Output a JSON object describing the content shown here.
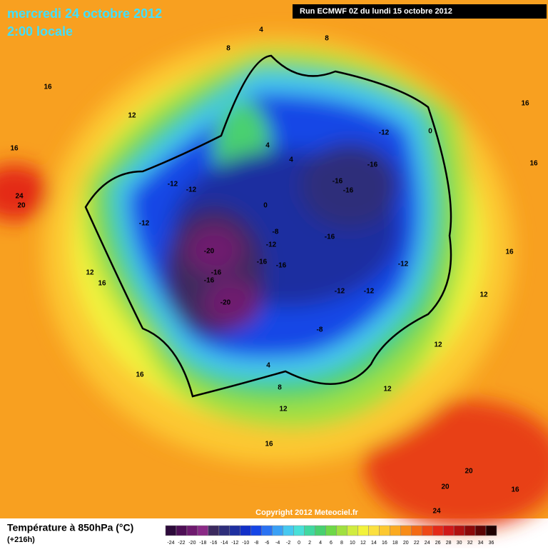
{
  "header": {
    "date": "mercredi 24 octobre 2012",
    "time": "2:00 locale",
    "run": "Run ECMWF 0Z du lundi 15 octobre 2012"
  },
  "copyright": "Copyright 2012 Meteociel.fr",
  "footer": {
    "title": "Température à 850hPa (°C)",
    "lead": "(+216h)"
  },
  "legend": {
    "ticks": [
      -24,
      -22,
      -20,
      -18,
      -16,
      -14,
      -12,
      -10,
      -8,
      -6,
      -4,
      -2,
      0,
      2,
      4,
      6,
      8,
      10,
      12,
      14,
      16,
      18,
      20,
      22,
      24,
      26,
      28,
      30,
      32,
      34,
      36
    ],
    "colors": [
      "#2d0b3b",
      "#4e0f55",
      "#6e1a6e",
      "#8a2a86",
      "#3c2a5e",
      "#2e2e7a",
      "#1e2fa0",
      "#1230c8",
      "#1646e6",
      "#2a72f2",
      "#3aa0f5",
      "#46c8f0",
      "#48e0d8",
      "#40d8a0",
      "#48d070",
      "#6ed848",
      "#a0e040",
      "#d0ec40",
      "#f2f23c",
      "#fbe040",
      "#fcc830",
      "#fbaa20",
      "#f88c18",
      "#f46a14",
      "#ee4816",
      "#e42a18",
      "#d01818",
      "#b01010",
      "#8c0808",
      "#5c0404",
      "#200000"
    ]
  },
  "contour_labels": [
    16,
    12,
    16,
    24,
    20,
    -12,
    -12,
    -12,
    -20,
    -16,
    -16,
    -20,
    -8,
    -12,
    -16,
    -16,
    -16,
    -16,
    -12,
    -16,
    -16,
    -12,
    -12,
    -12,
    -8,
    4,
    4,
    0,
    0,
    16,
    16,
    16,
    12,
    12,
    12,
    12,
    16,
    12,
    16,
    16,
    20,
    20,
    24,
    16,
    8,
    4,
    8,
    4,
    8
  ]
}
